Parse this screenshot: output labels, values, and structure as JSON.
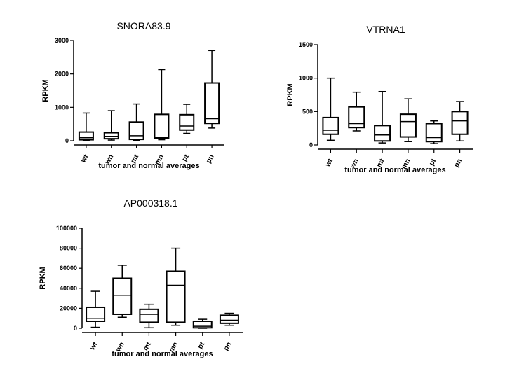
{
  "chart_data": [
    {
      "type": "box",
      "title": "SNORA83.9",
      "xlabel": "tumor and normal averages",
      "ylabel": "RPKM",
      "ylim": [
        0,
        3000
      ],
      "yticks": [
        0,
        1000,
        2000,
        3000
      ],
      "ytick_labels": [
        "0",
        "1000",
        "2000",
        "3000"
      ],
      "categories": [
        "wt",
        "wn",
        "mt",
        "mn",
        "pt",
        "pn"
      ],
      "boxes": [
        {
          "min": 10,
          "q1": 30,
          "median": 90,
          "q3": 260,
          "max": 830
        },
        {
          "min": 20,
          "q1": 60,
          "median": 130,
          "q3": 240,
          "max": 900
        },
        {
          "min": 10,
          "q1": 40,
          "median": 150,
          "q3": 560,
          "max": 1100
        },
        {
          "min": 30,
          "q1": 70,
          "median": 90,
          "q3": 790,
          "max": 2130
        },
        {
          "min": 220,
          "q1": 320,
          "median": 440,
          "q3": 780,
          "max": 1090
        },
        {
          "min": 380,
          "q1": 520,
          "median": 660,
          "q3": 1730,
          "max": 2700
        }
      ]
    },
    {
      "type": "box",
      "title": "VTRNA1",
      "xlabel": "tumor and normal averages",
      "ylabel": "RPKM",
      "ylim": [
        0,
        1500
      ],
      "yticks": [
        0,
        500,
        1000,
        1500
      ],
      "ytick_labels": [
        "0",
        "500",
        "1000",
        "1500"
      ],
      "categories": [
        "wt",
        "wn",
        "mt",
        "mn",
        "pt",
        "pn"
      ],
      "boxes": [
        {
          "min": 70,
          "q1": 160,
          "median": 220,
          "q3": 410,
          "max": 1000
        },
        {
          "min": 210,
          "q1": 260,
          "median": 320,
          "q3": 570,
          "max": 790
        },
        {
          "min": 30,
          "q1": 60,
          "median": 150,
          "q3": 290,
          "max": 800
        },
        {
          "min": 50,
          "q1": 120,
          "median": 350,
          "q3": 460,
          "max": 690
        },
        {
          "min": 20,
          "q1": 50,
          "median": 110,
          "q3": 320,
          "max": 360
        },
        {
          "min": 60,
          "q1": 160,
          "median": 360,
          "q3": 500,
          "max": 650
        }
      ]
    },
    {
      "type": "box",
      "title": "AP000318.1",
      "xlabel": "tumor and normal averages",
      "ylabel": "RPKM",
      "ylim": [
        0,
        100000
      ],
      "yticks": [
        0,
        20000,
        40000,
        60000,
        80000,
        100000
      ],
      "ytick_labels": [
        "0",
        "20000",
        "40000",
        "60000",
        "80000",
        "100000"
      ],
      "categories": [
        "wt",
        "wn",
        "mt",
        "mn",
        "pt",
        "pn"
      ],
      "boxes": [
        {
          "min": 1000,
          "q1": 7000,
          "median": 10000,
          "q3": 21000,
          "max": 37000
        },
        {
          "min": 11000,
          "q1": 14000,
          "median": 33000,
          "q3": 50000,
          "max": 63000
        },
        {
          "min": 500,
          "q1": 6000,
          "median": 14000,
          "q3": 19000,
          "max": 24000
        },
        {
          "min": 3000,
          "q1": 6000,
          "median": 43000,
          "q3": 57000,
          "max": 80000
        },
        {
          "min": 0,
          "q1": 500,
          "median": 2000,
          "q3": 7000,
          "max": 9000
        },
        {
          "min": 3000,
          "q1": 5000,
          "median": 8000,
          "q3": 13000,
          "max": 15000
        }
      ]
    }
  ]
}
